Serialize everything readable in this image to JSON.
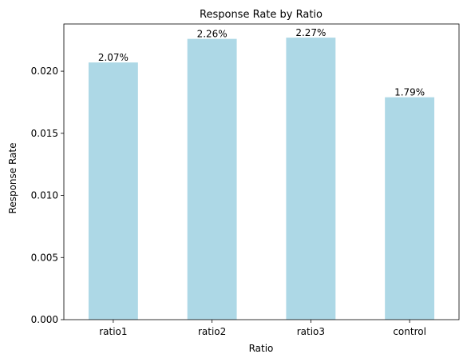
{
  "chart_data": {
    "type": "bar",
    "title": "Response Rate by Ratio",
    "xlabel": "Ratio",
    "ylabel": "Response Rate",
    "categories": [
      "ratio1",
      "ratio2",
      "ratio3",
      "control"
    ],
    "values": [
      0.0207,
      0.0226,
      0.0227,
      0.0179
    ],
    "data_labels": [
      "2.07%",
      "2.26%",
      "2.27%",
      "1.79%"
    ],
    "yticks": [
      0.0,
      0.005,
      0.01,
      0.015,
      0.02
    ],
    "ytick_labels": [
      "0.000",
      "0.005",
      "0.010",
      "0.015",
      "0.020"
    ],
    "ylim": [
      0,
      0.0238
    ],
    "bar_color": "#add8e6",
    "grid": false,
    "legend": "none"
  }
}
